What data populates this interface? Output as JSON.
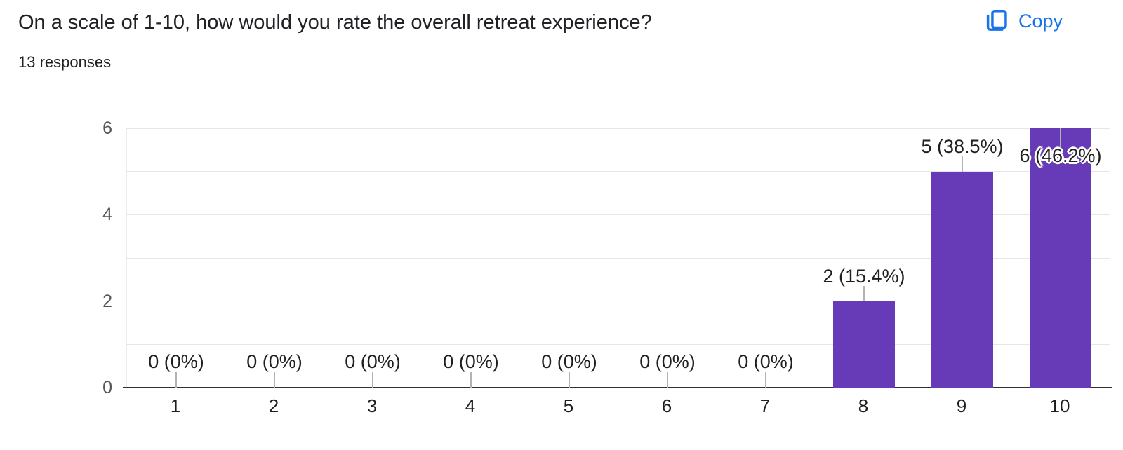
{
  "header": {
    "title": "On a scale of 1-10, how would you rate the overall retreat experience?",
    "responses_count": "13 responses",
    "copy_label": "Copy"
  },
  "colors": {
    "accent_blue": "#1a73e8",
    "bar_purple": "#673ab7",
    "gridline": "#e6e6e6",
    "axis_baseline": "#333333"
  },
  "chart_data": {
    "type": "bar",
    "title": "On a scale of 1-10, how would you rate the overall retreat experience?",
    "categories": [
      "1",
      "2",
      "3",
      "4",
      "5",
      "6",
      "7",
      "8",
      "9",
      "10"
    ],
    "values": [
      0,
      0,
      0,
      0,
      0,
      0,
      0,
      2,
      5,
      6
    ],
    "data_labels": [
      "0 (0%)",
      "0 (0%)",
      "0 (0%)",
      "0 (0%)",
      "0 (0%)",
      "0 (0%)",
      "0 (0%)",
      "2 (15.4%)",
      "5 (38.5%)",
      "6 (46.2%)"
    ],
    "xlabel": "",
    "ylabel": "",
    "ylim": [
      0,
      6
    ],
    "yticks": [
      0,
      2,
      4,
      6
    ],
    "grid": true,
    "legend": "none",
    "bar_color": "#673ab7"
  }
}
